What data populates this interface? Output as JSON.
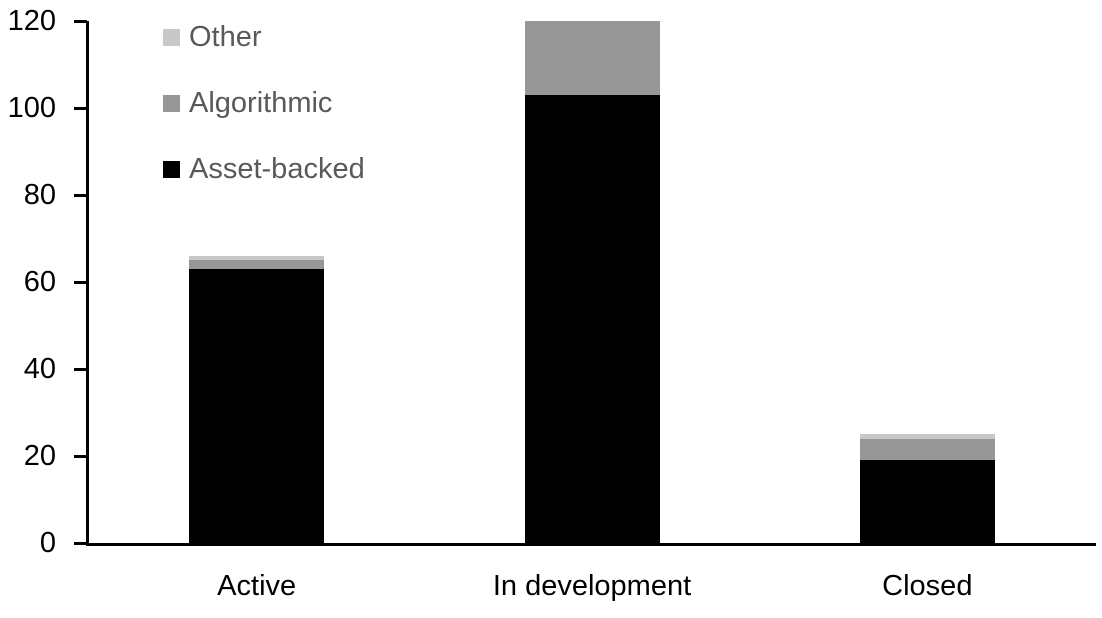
{
  "chart_data": {
    "type": "bar",
    "stacked": true,
    "title": "",
    "xlabel": "",
    "ylabel": "",
    "categories": [
      "Active",
      "In development",
      "Closed"
    ],
    "series": [
      {
        "name": "Asset-backed",
        "color": "#000000",
        "values": [
          63,
          103,
          19
        ]
      },
      {
        "name": "Algorithmic",
        "color": "#969696",
        "values": [
          2,
          17,
          5
        ]
      },
      {
        "name": "Other",
        "color": "#c8c8c8",
        "values": [
          1,
          0,
          1
        ]
      }
    ],
    "totals": [
      66,
      120,
      25
    ],
    "legend_order": [
      "Other",
      "Algorithmic",
      "Asset-backed"
    ],
    "legend_position": "top-left",
    "legend_text_color": "#595959",
    "ylim": [
      0,
      120
    ],
    "yticks": [
      0,
      20,
      40,
      60,
      80,
      100,
      120
    ],
    "grid": false,
    "axis_color": "#000000",
    "background_color": "#ffffff"
  }
}
